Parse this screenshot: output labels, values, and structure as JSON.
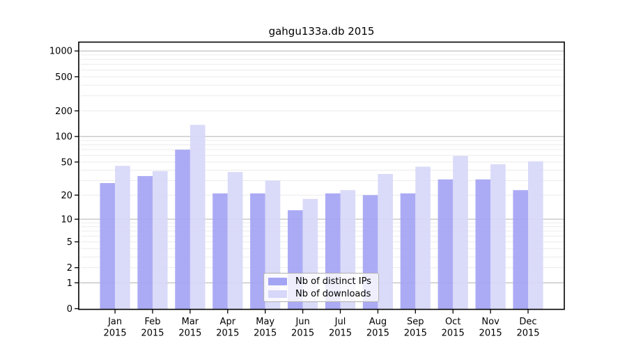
{
  "chart_data": {
    "type": "bar",
    "title": "gahgu133a.db 2015",
    "categories": [
      "Jan",
      "Feb",
      "Mar",
      "Apr",
      "May",
      "Jun",
      "Jul",
      "Aug",
      "Sep",
      "Oct",
      "Nov",
      "Dec"
    ],
    "year_label": "2015",
    "series": [
      {
        "name": "Nb of distinct IPs",
        "color": "#a4a4f4",
        "values": [
          28,
          34,
          70,
          21,
          21,
          13,
          21,
          20,
          21,
          31,
          31,
          23
        ]
      },
      {
        "name": "Nb of downloads",
        "color": "#d7d7f9",
        "values": [
          45,
          39,
          137,
          38,
          30,
          18,
          23,
          36,
          44,
          59,
          47,
          51
        ]
      }
    ],
    "xlabel": "",
    "ylabel": "",
    "yscale": "log1p",
    "yticks": [
      0,
      1,
      2,
      5,
      10,
      20,
      50,
      100,
      200,
      500,
      1000
    ],
    "ylim": [
      0,
      1270
    ],
    "grid": {
      "show": true,
      "major_at": [
        1,
        10,
        100,
        1000
      ],
      "major_color": "#b0b0b0",
      "minor_color": "#ebebeb"
    },
    "legend": {
      "position": "inside-bottom-center"
    },
    "colors": {
      "frame": "#000000",
      "text": "#000000",
      "background": "#ffffff"
    }
  }
}
